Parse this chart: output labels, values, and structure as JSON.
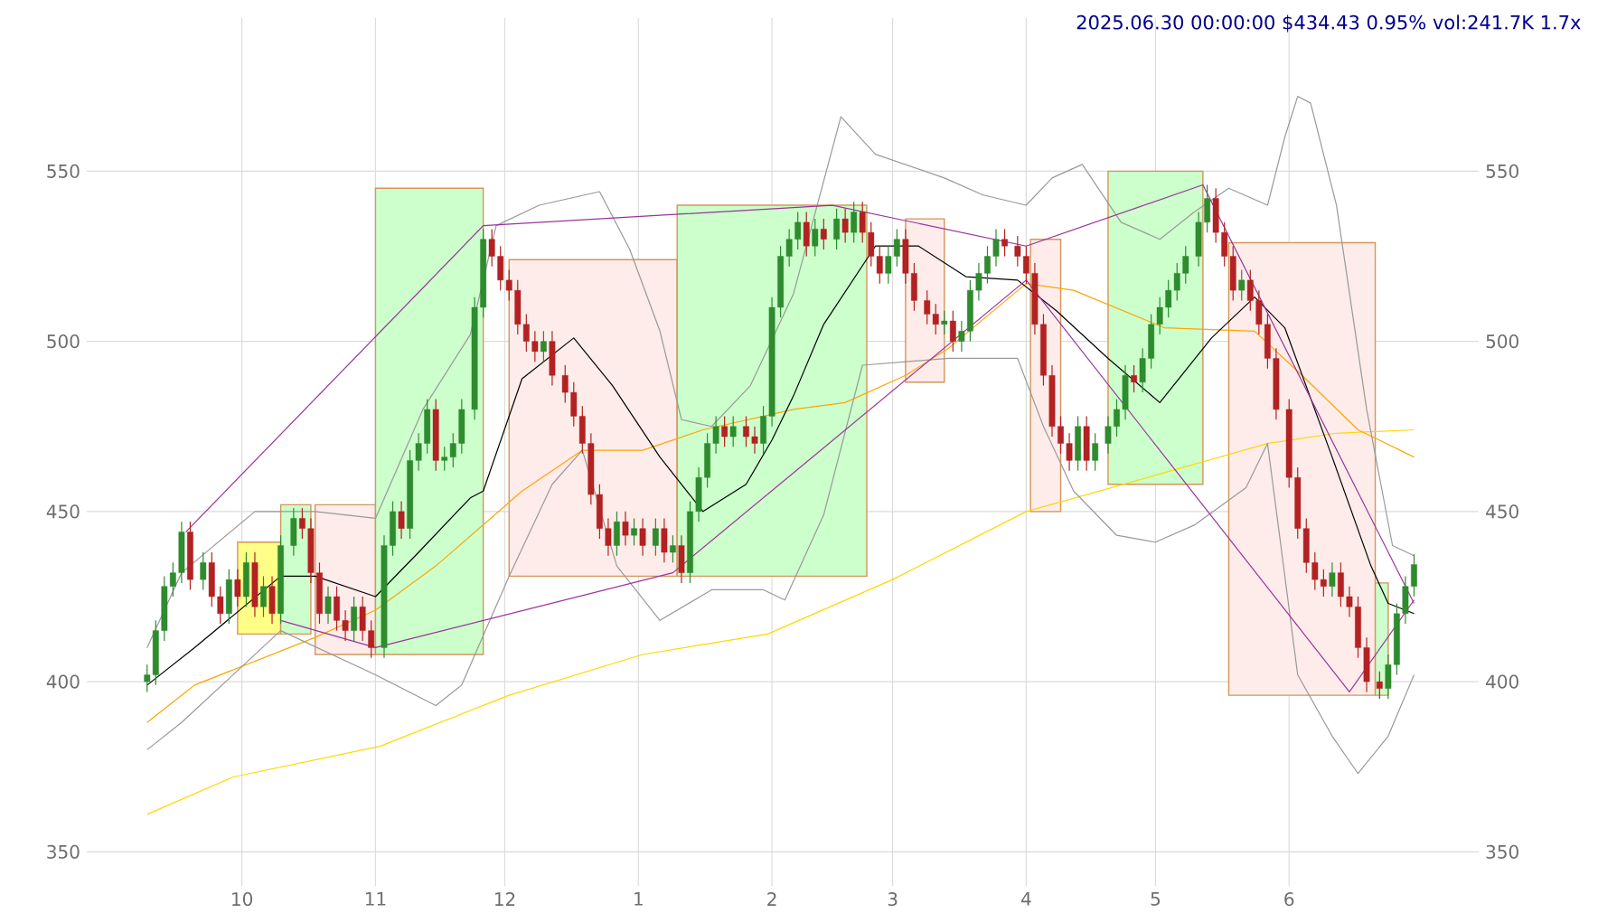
{
  "chart_data": {
    "type": "candlestick",
    "title": "2025.06.30 00:00:00 $434.43 0.95% vol:241.7K 1.7x",
    "x": [
      "2024-09-09",
      "2024-09-11",
      "2024-09-13",
      "2024-09-15",
      "2024-09-17",
      "2024-09-19",
      "2024-09-22",
      "2024-09-24",
      "2024-09-26",
      "2024-09-28",
      "2024-09-30",
      "2024-10-02",
      "2024-10-04",
      "2024-10-06",
      "2024-10-08",
      "2024-10-10",
      "2024-10-13",
      "2024-10-15",
      "2024-10-17",
      "2024-10-19",
      "2024-10-21",
      "2024-10-23",
      "2024-10-25",
      "2024-10-27",
      "2024-10-29",
      "2024-10-31",
      "2024-11-03",
      "2024-11-05",
      "2024-11-07",
      "2024-11-09",
      "2024-11-11",
      "2024-11-13",
      "2024-11-15",
      "2024-11-17",
      "2024-11-19",
      "2024-11-21",
      "2024-11-24",
      "2024-11-26",
      "2024-11-28",
      "2024-11-30",
      "2024-12-02",
      "2024-12-04",
      "2024-12-06",
      "2024-12-08",
      "2024-12-10",
      "2024-12-12",
      "2024-12-15",
      "2024-12-17",
      "2024-12-19",
      "2024-12-21",
      "2024-12-23",
      "2024-12-25",
      "2024-12-27",
      "2024-12-29",
      "2024-12-31",
      "2025-01-02",
      "2025-01-05",
      "2025-01-07",
      "2025-01-09",
      "2025-01-11",
      "2025-01-13",
      "2025-01-15",
      "2025-01-17",
      "2025-01-19",
      "2025-01-21",
      "2025-01-23",
      "2025-01-26",
      "2025-01-28",
      "2025-01-30",
      "2025-02-01",
      "2025-02-03",
      "2025-02-05",
      "2025-02-07",
      "2025-02-09",
      "2025-02-11",
      "2025-02-13",
      "2025-02-16",
      "2025-02-18",
      "2025-02-20",
      "2025-02-22",
      "2025-02-24",
      "2025-02-26",
      "2025-02-28",
      "2025-03-02",
      "2025-03-04",
      "2025-03-06",
      "2025-03-09",
      "2025-03-11",
      "2025-03-13",
      "2025-03-15",
      "2025-03-17",
      "2025-03-19",
      "2025-03-21",
      "2025-03-23",
      "2025-03-25",
      "2025-03-27",
      "2025-03-30",
      "2025-04-01",
      "2025-04-03",
      "2025-04-05",
      "2025-04-07",
      "2025-04-09",
      "2025-04-11",
      "2025-04-13",
      "2025-04-15",
      "2025-04-17",
      "2025-04-20",
      "2025-04-22",
      "2025-04-24",
      "2025-04-26",
      "2025-04-28",
      "2025-04-30",
      "2025-05-02",
      "2025-05-04",
      "2025-05-06",
      "2025-05-08",
      "2025-05-11",
      "2025-05-13",
      "2025-05-15",
      "2025-05-17",
      "2025-05-19",
      "2025-05-21",
      "2025-05-23",
      "2025-05-25",
      "2025-05-27",
      "2025-05-29",
      "2025-06-01",
      "2025-06-03",
      "2025-06-05",
      "2025-06-07",
      "2025-06-09",
      "2025-06-11",
      "2025-06-13",
      "2025-06-15",
      "2025-06-17",
      "2025-06-19",
      "2025-06-22",
      "2025-06-24",
      "2025-06-26",
      "2025-06-28",
      "2025-06-30"
    ],
    "ohlc": [
      [
        400,
        405,
        397,
        402
      ],
      [
        402,
        418,
        399,
        415
      ],
      [
        415,
        431,
        412,
        428
      ],
      [
        428,
        435,
        425,
        432
      ],
      [
        432,
        447,
        429,
        444
      ],
      [
        444,
        447,
        427,
        430
      ],
      [
        430,
        438,
        427,
        435
      ],
      [
        435,
        438,
        422,
        425
      ],
      [
        425,
        428,
        417,
        420
      ],
      [
        420,
        433,
        417,
        430
      ],
      [
        430,
        433,
        422,
        425
      ],
      [
        425,
        438,
        422,
        435
      ],
      [
        435,
        438,
        419,
        422
      ],
      [
        422,
        431,
        419,
        428
      ],
      [
        428,
        431,
        417,
        420
      ],
      [
        420,
        443,
        417,
        440
      ],
      [
        440,
        451,
        437,
        448
      ],
      [
        448,
        451,
        442,
        445
      ],
      [
        445,
        448,
        429,
        432
      ],
      [
        432,
        435,
        417,
        420
      ],
      [
        420,
        428,
        417,
        425
      ],
      [
        425,
        428,
        415,
        418
      ],
      [
        418,
        421,
        412,
        415
      ],
      [
        415,
        425,
        412,
        422
      ],
      [
        422,
        425,
        412,
        415
      ],
      [
        415,
        418,
        407,
        410
      ],
      [
        410,
        443,
        407,
        440
      ],
      [
        440,
        453,
        437,
        450
      ],
      [
        450,
        453,
        442,
        445
      ],
      [
        445,
        468,
        442,
        465
      ],
      [
        465,
        473,
        462,
        470
      ],
      [
        470,
        483,
        467,
        480
      ],
      [
        480,
        483,
        462,
        465
      ],
      [
        465,
        469,
        462,
        466
      ],
      [
        466,
        473,
        463,
        470
      ],
      [
        470,
        483,
        467,
        480
      ],
      [
        480,
        513,
        477,
        510
      ],
      [
        510,
        533,
        507,
        530
      ],
      [
        530,
        533,
        522,
        525
      ],
      [
        525,
        528,
        515,
        518
      ],
      [
        518,
        521,
        512,
        515
      ],
      [
        515,
        518,
        502,
        505
      ],
      [
        505,
        508,
        497,
        500
      ],
      [
        500,
        503,
        494,
        497
      ],
      [
        497,
        503,
        494,
        500
      ],
      [
        500,
        503,
        487,
        490
      ],
      [
        490,
        493,
        482,
        485
      ],
      [
        485,
        488,
        475,
        478
      ],
      [
        478,
        481,
        467,
        470
      ],
      [
        470,
        473,
        452,
        455
      ],
      [
        455,
        458,
        442,
        445
      ],
      [
        445,
        448,
        437,
        440
      ],
      [
        440,
        450,
        437,
        447
      ],
      [
        447,
        450,
        440,
        443
      ],
      [
        443,
        448,
        440,
        445
      ],
      [
        445,
        448,
        437,
        440
      ],
      [
        440,
        448,
        437,
        445
      ],
      [
        445,
        448,
        435,
        438
      ],
      [
        438,
        443,
        435,
        440
      ],
      [
        440,
        443,
        429,
        432
      ],
      [
        432,
        453,
        429,
        450
      ],
      [
        450,
        463,
        447,
        460
      ],
      [
        460,
        473,
        457,
        470
      ],
      [
        470,
        478,
        467,
        475
      ],
      [
        475,
        478,
        469,
        472
      ],
      [
        472,
        478,
        469,
        475
      ],
      [
        475,
        478,
        469,
        472
      ],
      [
        472,
        475,
        467,
        470
      ],
      [
        470,
        481,
        467,
        478
      ],
      [
        478,
        513,
        475,
        510
      ],
      [
        510,
        528,
        507,
        525
      ],
      [
        525,
        533,
        522,
        530
      ],
      [
        530,
        538,
        527,
        535
      ],
      [
        535,
        538,
        525,
        528
      ],
      [
        528,
        536,
        525,
        533
      ],
      [
        533,
        536,
        527,
        530
      ],
      [
        530,
        539,
        527,
        536
      ],
      [
        536,
        539,
        529,
        532
      ],
      [
        532,
        541,
        529,
        538
      ],
      [
        538,
        541,
        529,
        532
      ],
      [
        532,
        535,
        522,
        525
      ],
      [
        525,
        528,
        517,
        520
      ],
      [
        520,
        528,
        517,
        525
      ],
      [
        525,
        533,
        522,
        530
      ],
      [
        530,
        533,
        517,
        520
      ],
      [
        520,
        523,
        509,
        512
      ],
      [
        512,
        515,
        505,
        508
      ],
      [
        508,
        511,
        502,
        505
      ],
      [
        505,
        509,
        502,
        506
      ],
      [
        506,
        509,
        497,
        500
      ],
      [
        500,
        506,
        497,
        503
      ],
      [
        503,
        518,
        500,
        515
      ],
      [
        515,
        523,
        512,
        520
      ],
      [
        520,
        528,
        517,
        525
      ],
      [
        525,
        533,
        522,
        530
      ],
      [
        530,
        533,
        525,
        528
      ],
      [
        528,
        531,
        522,
        525
      ],
      [
        525,
        528,
        517,
        520
      ],
      [
        520,
        523,
        502,
        505
      ],
      [
        505,
        508,
        487,
        490
      ],
      [
        490,
        493,
        472,
        475
      ],
      [
        475,
        478,
        467,
        470
      ],
      [
        470,
        473,
        462,
        465
      ],
      [
        465,
        478,
        462,
        475
      ],
      [
        475,
        478,
        462,
        465
      ],
      [
        465,
        473,
        462,
        470
      ],
      [
        470,
        478,
        467,
        475
      ],
      [
        475,
        483,
        472,
        480
      ],
      [
        480,
        493,
        477,
        490
      ],
      [
        490,
        493,
        485,
        488
      ],
      [
        488,
        498,
        485,
        495
      ],
      [
        495,
        508,
        492,
        505
      ],
      [
        505,
        513,
        502,
        510
      ],
      [
        510,
        518,
        507,
        515
      ],
      [
        515,
        523,
        512,
        520
      ],
      [
        520,
        528,
        517,
        525
      ],
      [
        525,
        538,
        522,
        535
      ],
      [
        535,
        546,
        532,
        542
      ],
      [
        542,
        545,
        529,
        532
      ],
      [
        532,
        535,
        522,
        525
      ],
      [
        525,
        528,
        512,
        515
      ],
      [
        515,
        521,
        512,
        518
      ],
      [
        518,
        521,
        509,
        512
      ],
      [
        512,
        515,
        502,
        505
      ],
      [
        505,
        508,
        492,
        495
      ],
      [
        495,
        498,
        477,
        480
      ],
      [
        480,
        483,
        457,
        460
      ],
      [
        460,
        463,
        442,
        445
      ],
      [
        445,
        448,
        432,
        435
      ],
      [
        435,
        438,
        427,
        430
      ],
      [
        430,
        433,
        425,
        428
      ],
      [
        428,
        435,
        425,
        432
      ],
      [
        432,
        435,
        422,
        425
      ],
      [
        425,
        428,
        419,
        422
      ],
      [
        422,
        425,
        407,
        410
      ],
      [
        410,
        413,
        397,
        400
      ],
      [
        400,
        403,
        395,
        398
      ],
      [
        398,
        408,
        395,
        405
      ],
      [
        405,
        423,
        402,
        420
      ],
      [
        420,
        431,
        417,
        428
      ],
      [
        428,
        437.43,
        425,
        434.43
      ]
    ],
    "colors": [
      "#2e8b2e",
      "#2e8b2e",
      "#2e8b2e",
      "#2e8b2e",
      "#2e8b2e",
      "#b22222",
      "#2e8b2e",
      "#b22222",
      "#b22222",
      "#2e8b2e",
      "#b22222",
      "#2e8b2e",
      "#b22222",
      "#2e8b2e",
      "#b22222",
      "#2e8b2e",
      "#2e8b2e",
      "#b22222",
      "#b22222",
      "#b22222",
      "#2e8b2e",
      "#b22222",
      "#b22222",
      "#2e8b2e",
      "#b22222",
      "#b22222",
      "#2e8b2e",
      "#2e8b2e",
      "#b22222",
      "#2e8b2e",
      "#2e8b2e",
      "#2e8b2e",
      "#b22222",
      "#2e8b2e",
      "#2e8b2e",
      "#2e8b2e",
      "#2e8b2e",
      "#2e8b2e",
      "#b22222",
      "#b22222",
      "#b22222",
      "#b22222",
      "#b22222",
      "#b22222",
      "#2e8b2e",
      "#b22222",
      "#b22222",
      "#b22222",
      "#b22222",
      "#b22222",
      "#b22222",
      "#b22222",
      "#2e8b2e",
      "#b22222",
      "#2e8b2e",
      "#b22222",
      "#2e8b2e",
      "#b22222",
      "#2e8b2e",
      "#b22222",
      "#2e8b2e",
      "#2e8b2e",
      "#2e8b2e",
      "#2e8b2e",
      "#b22222",
      "#2e8b2e",
      "#b22222",
      "#b22222",
      "#2e8b2e",
      "#2e8b2e",
      "#2e8b2e",
      "#2e8b2e",
      "#2e8b2e",
      "#b22222",
      "#2e8b2e",
      "#b22222",
      "#2e8b2e",
      "#b22222",
      "#2e8b2e",
      "#b22222",
      "#b22222",
      "#b22222",
      "#2e8b2e",
      "#2e8b2e",
      "#b22222",
      "#b22222",
      "#b22222",
      "#b22222",
      "#2e8b2e",
      "#b22222",
      "#2e8b2e",
      "#2e8b2e",
      "#2e8b2e",
      "#2e8b2e",
      "#2e8b2e",
      "#b22222",
      "#b22222",
      "#b22222",
      "#b22222",
      "#b22222",
      "#b22222",
      "#b22222",
      "#b22222",
      "#2e8b2e",
      "#b22222",
      "#2e8b2e",
      "#2e8b2e",
      "#2e8b2e",
      "#2e8b2e",
      "#b22222",
      "#2e8b2e",
      "#2e8b2e",
      "#2e8b2e",
      "#2e8b2e",
      "#2e8b2e",
      "#2e8b2e",
      "#2e8b2e",
      "#2e8b2e",
      "#b22222",
      "#b22222",
      "#b22222",
      "#2e8b2e",
      "#b22222",
      "#b22222",
      "#b22222",
      "#b22222",
      "#b22222",
      "#b22222",
      "#b22222",
      "#b22222",
      "#b22222",
      "#2e8b2e",
      "#b22222",
      "#b22222",
      "#b22222",
      "#b22222",
      "#b22222",
      "#2e8b2e",
      "#2e8b2e",
      "#2e8b2e",
      "#2e8b2e"
    ],
    "series": [
      {
        "type": "area",
        "color": "#ffff88",
        "x": [
          "2024-09-30",
          "2024-09-30",
          "2024-10-10",
          "2024-10-10"
        ],
        "values": [
          414,
          441,
          441,
          414
        ]
      },
      {
        "type": "area",
        "color": "#ccffcc",
        "x": [
          "2024-10-10",
          "2024-10-10",
          "2024-10-17",
          "2024-10-17"
        ],
        "values": [
          414,
          452,
          452,
          414
        ]
      },
      {
        "type": "area",
        "color": "#fdecea",
        "x": [
          "2024-10-18",
          "2024-10-18",
          "2024-11-01",
          "2024-11-01"
        ],
        "values": [
          408,
          452,
          452,
          408
        ]
      },
      {
        "type": "area",
        "color": "#ccffcc",
        "x": [
          "2024-11-01",
          "2024-11-01",
          "2024-11-26",
          "2024-11-26"
        ],
        "values": [
          408,
          545,
          545,
          408
        ]
      },
      {
        "type": "area",
        "color": "#fdecea",
        "x": [
          "2024-12-02",
          "2024-12-02",
          "2025-01-10",
          "2025-01-10"
        ],
        "values": [
          431,
          524,
          524,
          431
        ]
      },
      {
        "type": "area",
        "color": "#ccffcc",
        "x": [
          "2025-01-10",
          "2025-01-10",
          "2025-02-23",
          "2025-02-23"
        ],
        "values": [
          431,
          540,
          540,
          431
        ]
      },
      {
        "type": "area",
        "color": "#fdecea",
        "x": [
          "2025-03-04",
          "2025-03-04",
          "2025-03-13",
          "2025-03-13"
        ],
        "values": [
          488,
          536,
          536,
          488
        ]
      },
      {
        "type": "area",
        "color": "#fdecea",
        "x": [
          "2025-04-02",
          "2025-04-02",
          "2025-04-09",
          "2025-04-09"
        ],
        "values": [
          450,
          530,
          530,
          450
        ]
      },
      {
        "type": "area",
        "color": "#ccffcc",
        "x": [
          "2025-04-20",
          "2025-04-20",
          "2025-05-12",
          "2025-05-12"
        ],
        "values": [
          458,
          550,
          550,
          458
        ]
      },
      {
        "type": "area",
        "color": "#fdecea",
        "x": [
          "2025-05-18",
          "2025-05-18",
          "2025-06-21",
          "2025-06-21"
        ],
        "values": [
          396,
          529,
          529,
          396
        ]
      },
      {
        "type": "area",
        "color": "#ccffcc",
        "x": [
          "2025-06-21",
          "2025-06-21",
          "2025-06-24",
          "2025-06-24"
        ],
        "values": [
          396,
          429,
          429,
          396
        ]
      },
      {
        "type": "line",
        "color": "#ffd700",
        "x": [
          "2024-09-09",
          "2024-09-29",
          "2024-11-02",
          "2024-12-02",
          "2025-01-02",
          "2025-01-31",
          "2025-03-01",
          "2025-04-01",
          "2025-05-02",
          "2025-05-27",
          "2025-06-12",
          "2025-06-30"
        ],
        "values": [
          361,
          372,
          381,
          396,
          408,
          414,
          430,
          450,
          461,
          470,
          473,
          474
        ]
      },
      {
        "type": "line",
        "color": "#ffa500",
        "x": [
          "2024-09-09",
          "2024-09-20",
          "2024-10-18",
          "2024-11-01",
          "2024-11-15",
          "2024-12-05",
          "2024-12-19",
          "2025-01-02",
          "2025-01-16",
          "2025-02-06",
          "2025-02-18",
          "2025-03-04",
          "2025-03-14",
          "2025-04-01",
          "2025-04-12",
          "2025-05-03",
          "2025-05-24",
          "2025-06-04",
          "2025-06-17",
          "2025-06-30"
        ],
        "values": [
          388,
          399,
          413,
          421,
          434,
          456,
          468,
          468,
          474,
          480,
          482,
          490,
          498,
          517,
          515,
          504,
          503,
          490,
          474,
          466
        ]
      },
      {
        "type": "line",
        "color": "#999999",
        "x": [
          "2024-09-09",
          "2024-09-17",
          "2024-10-04",
          "2024-10-18",
          "2024-11-01",
          "2024-11-12",
          "2024-11-23",
          "2024-11-29",
          "2024-12-09",
          "2024-12-23",
          "2024-12-30",
          "2025-01-06",
          "2025-01-11",
          "2025-01-18",
          "2025-01-27",
          "2025-02-06",
          "2025-02-17",
          "2025-02-25",
          "2025-03-13",
          "2025-03-22",
          "2025-04-01",
          "2025-04-07",
          "2025-04-14",
          "2025-04-23",
          "2025-05-02",
          "2025-05-10",
          "2025-05-18",
          "2025-05-27",
          "2025-05-31",
          "2025-06-03",
          "2025-06-06",
          "2025-06-12",
          "2025-06-19",
          "2025-06-25",
          "2025-06-30"
        ],
        "values": [
          410,
          432,
          450,
          450,
          448,
          480,
          502,
          534,
          540,
          544,
          527,
          503,
          477,
          475,
          487,
          514,
          566,
          555,
          548,
          543,
          540,
          548,
          552,
          535,
          530,
          538,
          545,
          540,
          560,
          572,
          570,
          540,
          480,
          440,
          437
        ]
      },
      {
        "type": "line",
        "color": "#999999",
        "x": [
          "2024-09-09",
          "2024-09-17",
          "2024-10-10",
          "2024-11-01",
          "2024-11-15",
          "2024-11-21",
          "2024-12-02",
          "2024-12-12",
          "2024-12-19",
          "2024-12-27",
          "2025-01-06",
          "2025-01-18",
          "2025-01-30",
          "2025-02-04",
          "2025-02-13",
          "2025-02-22",
          "2025-03-14",
          "2025-03-30",
          "2025-04-05",
          "2025-04-12",
          "2025-04-22",
          "2025-05-01",
          "2025-05-10",
          "2025-05-22",
          "2025-05-27",
          "2025-06-03",
          "2025-06-11",
          "2025-06-17",
          "2025-06-24",
          "2025-06-30"
        ],
        "values": [
          380,
          388,
          415,
          402,
          393,
          399,
          431,
          458,
          468,
          434,
          418,
          427,
          427,
          424,
          449,
          493,
          495,
          495,
          475,
          456,
          443,
          441,
          446,
          457,
          470,
          402,
          384,
          373,
          384,
          402
        ]
      },
      {
        "type": "line",
        "color": "#000000",
        "x": [
          "2024-09-09",
          "2024-09-20",
          "2024-10-10",
          "2024-10-18",
          "2024-11-01",
          "2024-11-11",
          "2024-11-23",
          "2024-11-26",
          "2024-12-05",
          "2024-12-17",
          "2024-12-26",
          "2025-01-06",
          "2025-01-16",
          "2025-01-26",
          "2025-02-01",
          "2025-02-06",
          "2025-02-13",
          "2025-02-25",
          "2025-03-07",
          "2025-03-18",
          "2025-03-30",
          "2025-04-08",
          "2025-04-20",
          "2025-05-02",
          "2025-05-14",
          "2025-05-24",
          "2025-05-31",
          "2025-06-11",
          "2025-06-20",
          "2025-06-24",
          "2025-06-30"
        ],
        "values": [
          399,
          410,
          431,
          431,
          425,
          438,
          454,
          456,
          489,
          501,
          487,
          466,
          450,
          458,
          471,
          484,
          505,
          528,
          528,
          519,
          518,
          509,
          495,
          482,
          501,
          513,
          504,
          466,
          434,
          423,
          420
        ]
      },
      {
        "type": "line",
        "color": "#993399",
        "x": [
          "2024-09-18",
          "2024-11-26",
          "2025-02-15",
          "2025-04-01",
          "2025-05-12",
          "2025-06-30"
        ],
        "values": [
          444,
          534,
          540,
          528,
          546,
          423
        ]
      },
      {
        "type": "line",
        "color": "#993399",
        "x": [
          "2024-10-10",
          "2024-11-01",
          "2025-01-09",
          "2025-04-01",
          "2025-06-15",
          "2025-06-30"
        ],
        "values": [
          418,
          410,
          432,
          518,
          397,
          424
        ]
      }
    ],
    "xlim": [
      "2024-08-26",
      "2025-07-15"
    ],
    "xticks": [
      {
        "value": "2024-10-01",
        "label": "10"
      },
      {
        "value": "2024-11-01",
        "label": "11"
      },
      {
        "value": "2024-12-01",
        "label": "12"
      },
      {
        "value": "2025-01-01",
        "label": "1"
      },
      {
        "value": "2025-02-01",
        "label": "2"
      },
      {
        "value": "2025-03-01",
        "label": "3"
      },
      {
        "value": "2025-04-01",
        "label": "4"
      },
      {
        "value": "2025-05-01",
        "label": "5"
      },
      {
        "value": "2025-06-01",
        "label": "6"
      }
    ],
    "ylim": [
      340,
      595
    ],
    "yticks": [
      350,
      400,
      450,
      500,
      550
    ],
    "y2lim": [
      340,
      595
    ],
    "y2ticks": [
      350,
      400,
      450,
      500,
      550
    ],
    "grid": true
  }
}
